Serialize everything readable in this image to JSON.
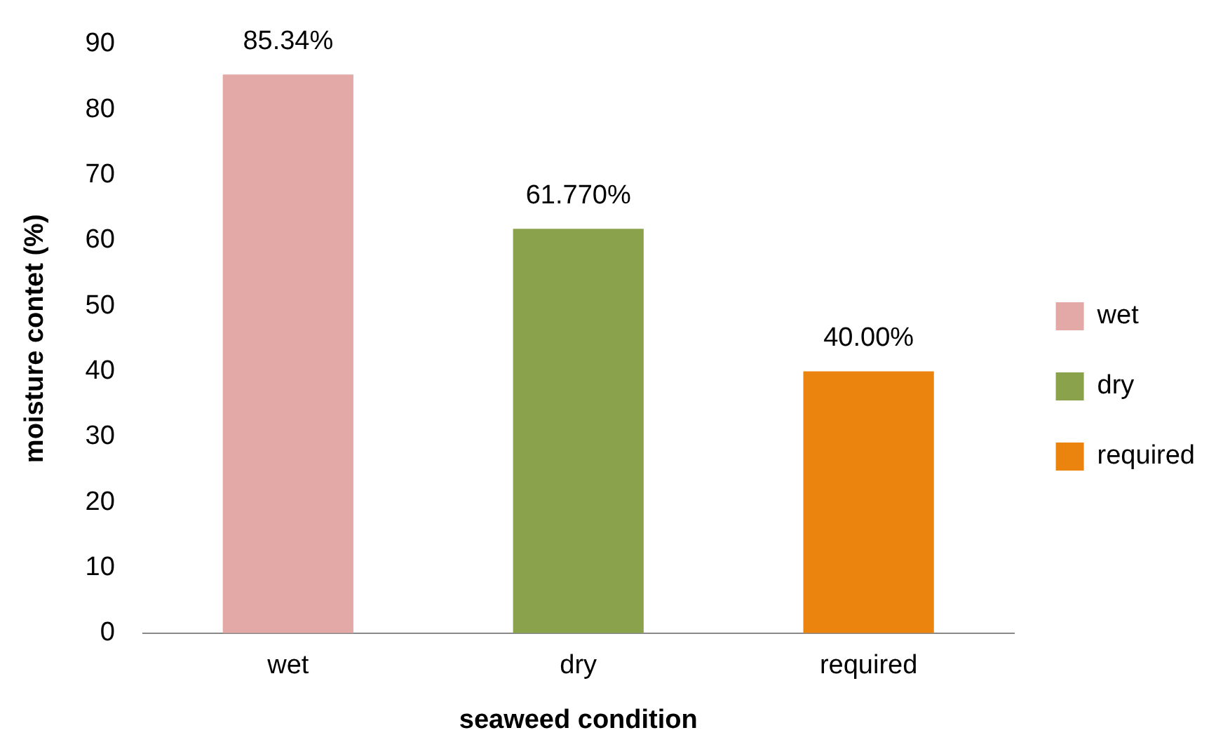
{
  "chart_data": {
    "type": "bar",
    "xlabel": "seaweed condition",
    "ylabel": "moisture contet (%)",
    "categories": [
      "wet",
      "dry",
      "required"
    ],
    "series": [
      {
        "name": "wet",
        "color": "#e3a9a6",
        "values": [
          85.34,
          null,
          null
        ],
        "value_labels": [
          "85.34%",
          null,
          null
        ]
      },
      {
        "name": "dry",
        "color": "#8ba24c",
        "values": [
          null,
          61.77,
          null
        ],
        "value_labels": [
          null,
          "61.770%",
          null
        ]
      },
      {
        "name": "required",
        "color": "#eb840e",
        "values": [
          null,
          null,
          40.0
        ],
        "value_labels": [
          null,
          null,
          "40.00%"
        ]
      }
    ],
    "ylim": [
      0,
      90
    ],
    "yticks": [
      0,
      10,
      20,
      30,
      40,
      50,
      60,
      70,
      80,
      90
    ],
    "grid": false,
    "legend": "right"
  }
}
